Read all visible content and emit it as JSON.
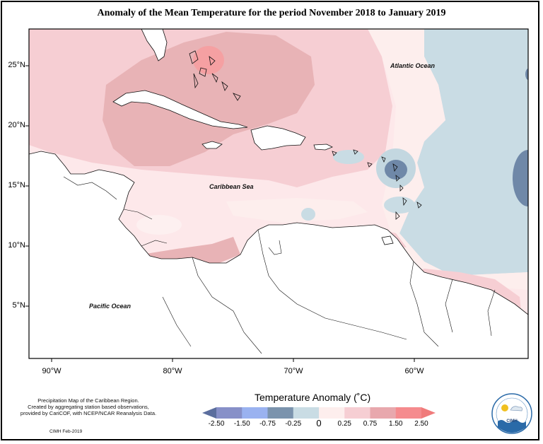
{
  "title": "Anomaly of the Mean Temperature for the period November 2018 to January 2019",
  "axes": {
    "lat_labels": [
      "25°N",
      "20°N",
      "15°N",
      "10°N",
      "5°N"
    ],
    "lon_labels": [
      "90°W",
      "80°W",
      "70°W",
      "60°W"
    ]
  },
  "regions": {
    "atlantic": "Atlantic Ocean",
    "caribbean": "Caribbean Sea",
    "pacific": "Pacific Ocean"
  },
  "credits": {
    "line1": "Precipitation Map of the Caribbean Region.",
    "line2": "Created by aggregating station based observations,",
    "line3": "provided by CariCOF, with NCEP/NCAR Reanalysis Data.",
    "note": "CIMH Feb-2019"
  },
  "legend": {
    "title": "Temperature Anomaly (˚C)",
    "ticks": [
      "-2.50",
      "-1.50",
      "-0.75",
      "-0.25",
      "0",
      "0.25",
      "0.75",
      "1.50",
      "2.50"
    ],
    "colors": [
      "#5b6e9e",
      "#8790c8",
      "#9ab2f0",
      "#7b93ad",
      "#c9dce4",
      "#fdeeed",
      "#f6ced3",
      "#e8a8ad",
      "#f58b8e",
      "#f07b7b"
    ]
  },
  "logo": {
    "text": "CIMH"
  }
}
